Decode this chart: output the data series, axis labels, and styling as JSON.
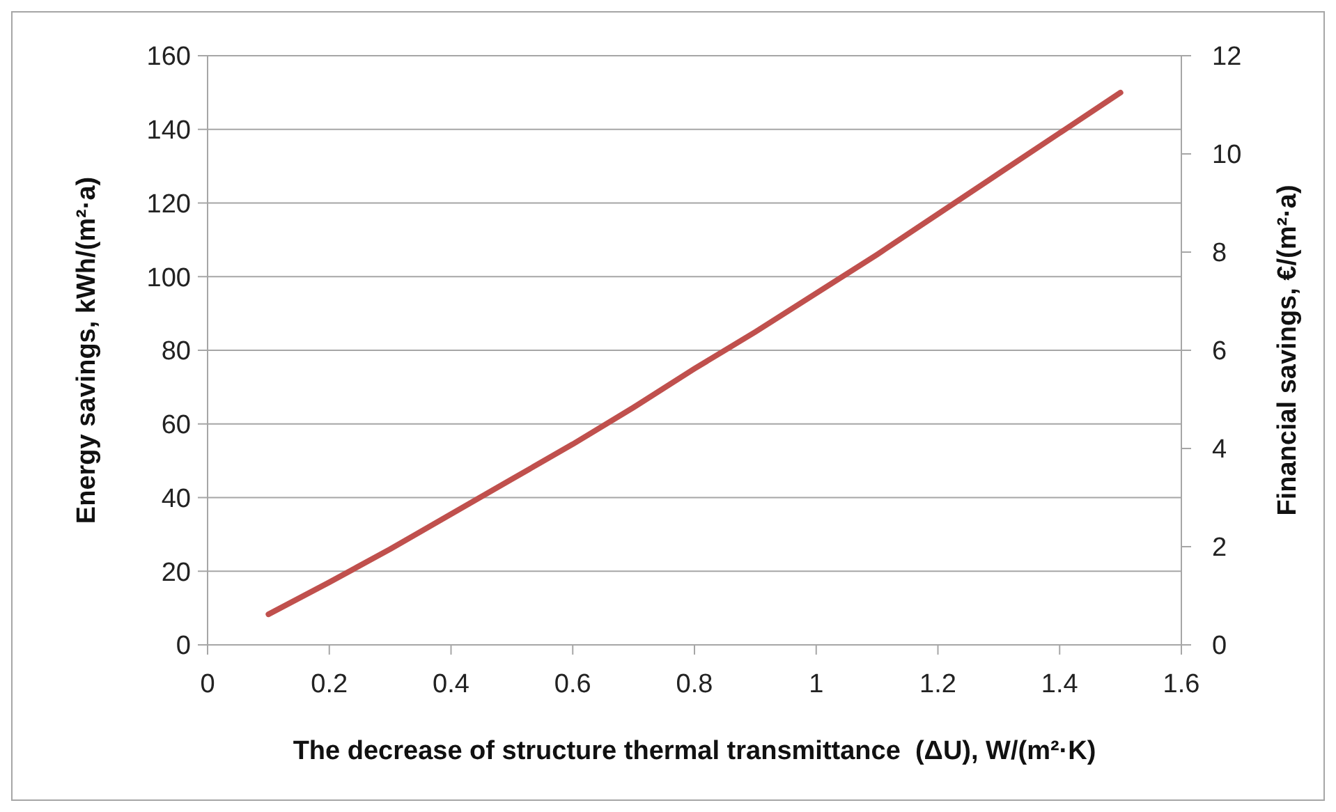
{
  "chart_data": {
    "type": "line",
    "xlabel": "The decrease of structure thermal transmittance  (ΔU), W/(m²·K)",
    "ylabel": "Energy savings, kWh/(m²·a)",
    "y2label": "Financial savings, €/(m²·a)",
    "xlim": [
      0,
      1.6
    ],
    "xticks": [
      0,
      0.2,
      0.4,
      0.6,
      0.8,
      1,
      1.2,
      1.4,
      1.6
    ],
    "ylim": [
      0,
      160
    ],
    "yticks": [
      0,
      20,
      40,
      60,
      80,
      100,
      120,
      140,
      160
    ],
    "y2lim": [
      0,
      12
    ],
    "y2ticks": [
      0,
      2,
      4,
      6,
      8,
      10,
      12
    ],
    "grid": "y",
    "marker": "none",
    "line_style": "solid",
    "series": [
      {
        "color": "#c0504d",
        "x": [
          0.1,
          0.2,
          0.3,
          0.4,
          0.5,
          0.6,
          0.7,
          0.8,
          0.9,
          1.0,
          1.1,
          1.2,
          1.3,
          1.4,
          1.5
        ],
        "values": [
          8.3,
          17,
          26,
          35.5,
          45,
          54.5,
          64.5,
          75,
          85,
          95.5,
          106,
          117,
          128,
          139,
          150
        ]
      }
    ]
  }
}
